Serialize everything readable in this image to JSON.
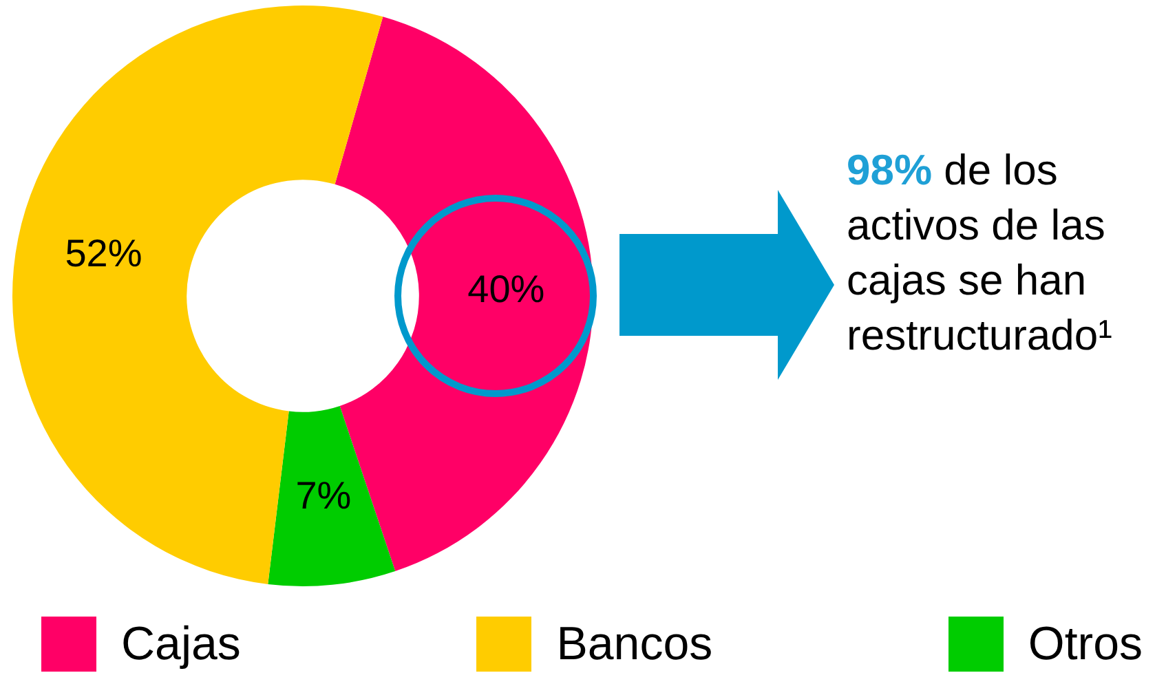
{
  "chart_data": {
    "type": "donut",
    "categories": [
      "Cajas",
      "Otros",
      "Bancos"
    ],
    "values": [
      40,
      7,
      52
    ],
    "colors": [
      "#ff0066",
      "#00cc00",
      "#ffcc00"
    ],
    "value_labels": [
      "40%",
      "7%",
      "52%"
    ],
    "legend": "bottom",
    "annotations": [
      "98% de los activos de las cajas se han restructurado¹"
    ]
  }
}
